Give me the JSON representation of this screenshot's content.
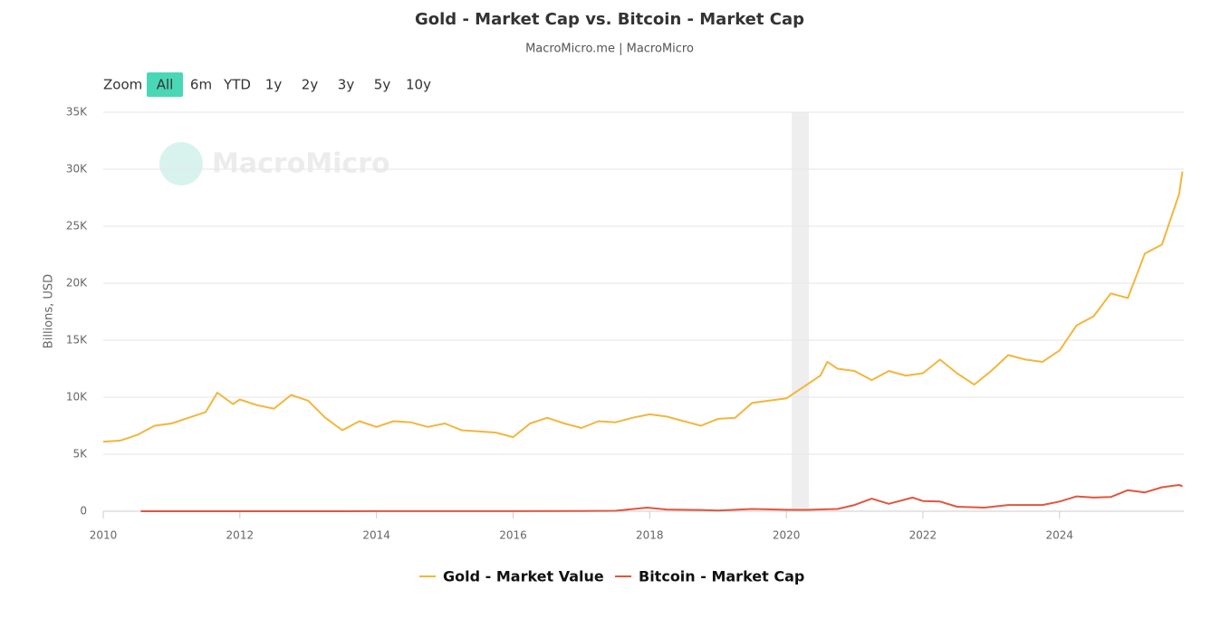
{
  "chart_data": {
    "type": "line",
    "title": "Gold - Market Cap vs. Bitcoin - Market Cap",
    "subtitle": "MacroMicro.me | MacroMicro",
    "watermark": "MacroMicro",
    "range_selector": [
      "Zoom",
      "All",
      "6m",
      "YTD",
      "1y",
      "2y",
      "3y",
      "5y",
      "10y"
    ],
    "y_label": "Billions, USD",
    "xlim": [
      2010,
      2025.82
    ],
    "xticks": [
      2010,
      2012,
      2014,
      2016,
      2018,
      2020,
      2022,
      2024
    ],
    "ylim": [
      0,
      35000
    ],
    "yticks": [
      0,
      {
        "value": 5000,
        "label": "5K"
      },
      {
        "value": 10000,
        "label": "10K"
      },
      {
        "value": 15000,
        "label": "15K"
      },
      {
        "value": 20000,
        "label": "20K"
      },
      {
        "value": 25000,
        "label": "25K"
      },
      {
        "value": 30000,
        "label": "30K"
      },
      {
        "value": 35000,
        "label": "35K"
      }
    ],
    "grid": true,
    "legend": "bottom",
    "shaded_ranges": [
      [
        2020.08,
        2020.33
      ]
    ],
    "series": [
      {
        "name": "Gold - Market Value",
        "color": "#f2b63c",
        "x": [
          2010.0,
          2010.25,
          2010.5,
          2010.75,
          2011.0,
          2011.25,
          2011.5,
          2011.67,
          2011.9,
          2012.0,
          2012.25,
          2012.5,
          2012.75,
          2013.0,
          2013.25,
          2013.5,
          2013.75,
          2014.0,
          2014.25,
          2014.5,
          2014.75,
          2015.0,
          2015.25,
          2015.5,
          2015.75,
          2016.0,
          2016.25,
          2016.5,
          2016.75,
          2017.0,
          2017.25,
          2017.5,
          2017.75,
          2018.0,
          2018.25,
          2018.5,
          2018.75,
          2019.0,
          2019.25,
          2019.5,
          2019.75,
          2020.0,
          2020.25,
          2020.5,
          2020.6,
          2020.75,
          2021.0,
          2021.25,
          2021.5,
          2021.75,
          2022.0,
          2022.25,
          2022.5,
          2022.75,
          2023.0,
          2023.25,
          2023.5,
          2023.75,
          2024.0,
          2024.25,
          2024.5,
          2024.75,
          2025.0,
          2025.25,
          2025.5,
          2025.75,
          2025.8
        ],
        "values": [
          6100,
          6200,
          6700,
          7500,
          7700,
          8200,
          8700,
          10400,
          9400,
          9800,
          9300,
          9000,
          10200,
          9700,
          8200,
          7100,
          7900,
          7400,
          7900,
          7800,
          7400,
          7700,
          7100,
          7000,
          6900,
          6500,
          7700,
          8200,
          7700,
          7300,
          7900,
          7800,
          8200,
          8500,
          8300,
          7900,
          7500,
          8100,
          8200,
          9500,
          9700,
          9900,
          10900,
          11900,
          13100,
          12500,
          12300,
          11500,
          12300,
          11900,
          12100,
          13300,
          12100,
          11100,
          12300,
          13700,
          13300,
          13100,
          14100,
          16300,
          17100,
          19100,
          18700,
          22600,
          23400,
          27800,
          29800
        ]
      },
      {
        "name": "Bitcoin - Market Cap",
        "color": "#e2553f",
        "x": [
          2010.55,
          2013.0,
          2014.0,
          2016.0,
          2017.0,
          2017.5,
          2017.96,
          2018.25,
          2018.75,
          2019.0,
          2019.5,
          2020.0,
          2020.25,
          2020.75,
          2021.0,
          2021.25,
          2021.5,
          2021.85,
          2022.0,
          2022.25,
          2022.5,
          2022.9,
          2023.25,
          2023.75,
          2024.0,
          2024.25,
          2024.5,
          2024.75,
          2025.0,
          2025.25,
          2025.5,
          2025.75,
          2025.8
        ],
        "values": [
          0,
          2,
          10,
          6,
          15,
          40,
          320,
          150,
          110,
          65,
          200,
          130,
          120,
          200,
          550,
          1100,
          650,
          1200,
          900,
          850,
          400,
          320,
          550,
          550,
          850,
          1300,
          1200,
          1250,
          1850,
          1650,
          2100,
          2300,
          2200
        ]
      }
    ]
  }
}
